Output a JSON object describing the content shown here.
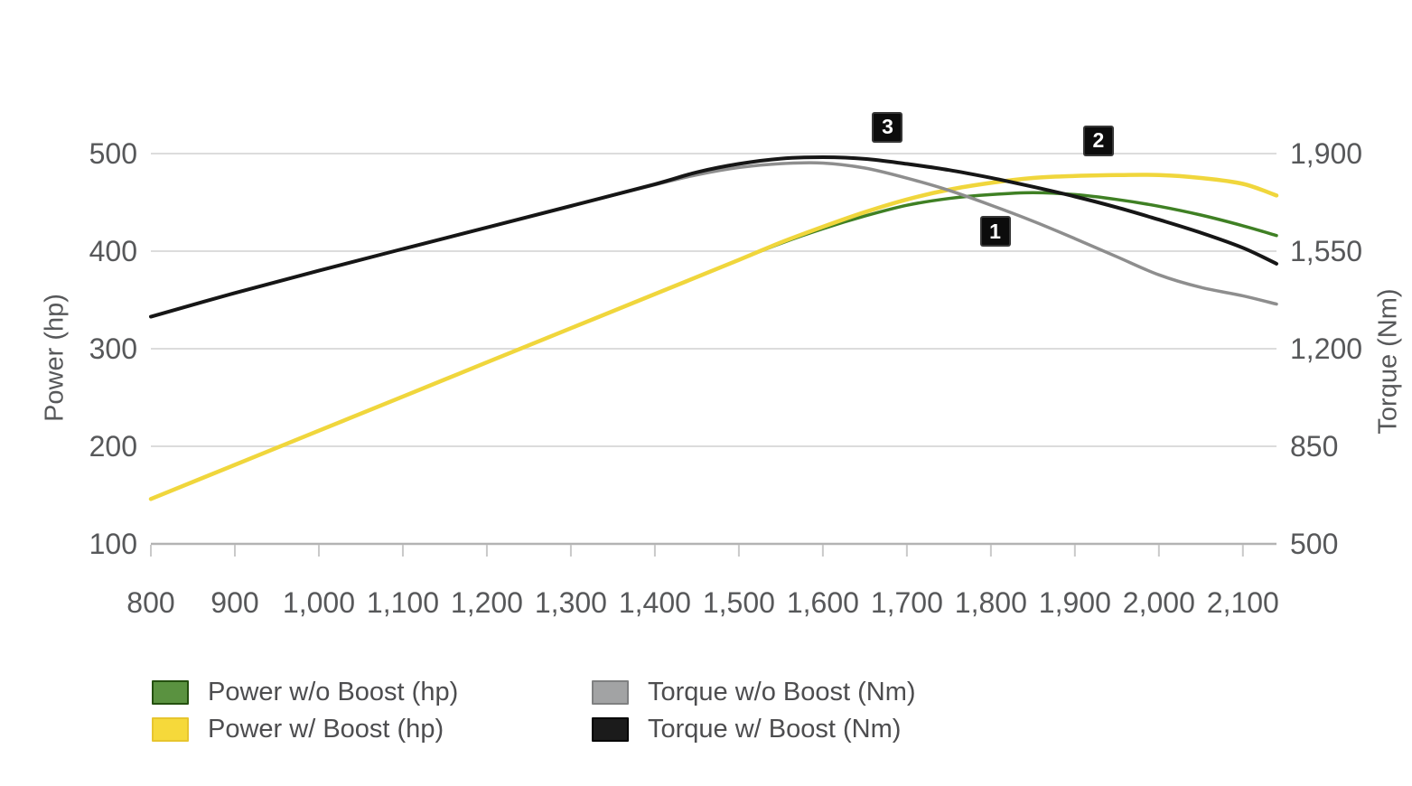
{
  "chart_data": {
    "type": "line",
    "title": "",
    "x_axis": {
      "label": "",
      "range": [
        800,
        2140
      ],
      "ticks": [
        {
          "value": 800,
          "label": "800"
        },
        {
          "value": 900,
          "label": "900"
        },
        {
          "value": 1000,
          "label": "1,000"
        },
        {
          "value": 1100,
          "label": "1,100"
        },
        {
          "value": 1200,
          "label": "1,200"
        },
        {
          "value": 1300,
          "label": "1,300"
        },
        {
          "value": 1400,
          "label": "1,400"
        },
        {
          "value": 1500,
          "label": "1,500"
        },
        {
          "value": 1600,
          "label": "1,600"
        },
        {
          "value": 1700,
          "label": "1,700"
        },
        {
          "value": 1800,
          "label": "1,800"
        },
        {
          "value": 1900,
          "label": "1,900"
        },
        {
          "value": 2000,
          "label": "2,000"
        },
        {
          "value": 2100,
          "label": "2,100"
        }
      ]
    },
    "y_left": {
      "label": "Power (hp)",
      "range": [
        100,
        500
      ],
      "ticks": [
        {
          "value": 500,
          "label": "500"
        },
        {
          "value": 400,
          "label": "400"
        },
        {
          "value": 300,
          "label": "300"
        },
        {
          "value": 200,
          "label": "200"
        },
        {
          "value": 100,
          "label": "100"
        }
      ]
    },
    "y_right": {
      "label": "Torque (Nm)",
      "range": [
        500,
        1900
      ],
      "ticks": [
        {
          "value": 1900,
          "label": "1,900"
        },
        {
          "value": 1550,
          "label": "1,550"
        },
        {
          "value": 1200,
          "label": "1,200"
        },
        {
          "value": 850,
          "label": "850"
        },
        {
          "value": 500,
          "label": "500"
        }
      ]
    },
    "grid": true,
    "legend_position": "bottom",
    "series": [
      {
        "name": "Power w/o Boost (hp)",
        "key": "power-without-boost",
        "axis": "left",
        "color": "#3f8024",
        "width": 3.5,
        "points": [
          [
            800,
            146
          ],
          [
            900,
            181
          ],
          [
            1000,
            216
          ],
          [
            1100,
            251
          ],
          [
            1200,
            286
          ],
          [
            1300,
            321
          ],
          [
            1400,
            356
          ],
          [
            1500,
            391
          ],
          [
            1550,
            408
          ],
          [
            1600,
            423
          ],
          [
            1650,
            436
          ],
          [
            1700,
            447
          ],
          [
            1750,
            454
          ],
          [
            1800,
            458
          ],
          [
            1850,
            460
          ],
          [
            1900,
            458
          ],
          [
            1950,
            453
          ],
          [
            2000,
            446
          ],
          [
            2050,
            437
          ],
          [
            2100,
            426
          ],
          [
            2140,
            416
          ]
        ]
      },
      {
        "name": "Power w/ Boost (hp)",
        "key": "power-with-boost",
        "axis": "left",
        "color": "#f0d63c",
        "width": 4.5,
        "points": [
          [
            800,
            146
          ],
          [
            900,
            181
          ],
          [
            1000,
            216
          ],
          [
            1100,
            251
          ],
          [
            1200,
            286
          ],
          [
            1300,
            321
          ],
          [
            1400,
            356
          ],
          [
            1500,
            391
          ],
          [
            1550,
            409
          ],
          [
            1600,
            425
          ],
          [
            1650,
            440
          ],
          [
            1700,
            453
          ],
          [
            1750,
            463
          ],
          [
            1800,
            470
          ],
          [
            1850,
            475
          ],
          [
            1900,
            477
          ],
          [
            1950,
            478
          ],
          [
            2000,
            478
          ],
          [
            2050,
            475
          ],
          [
            2100,
            469
          ],
          [
            2140,
            457
          ]
        ]
      },
      {
        "name": "Torque w/o Boost (Nm)",
        "key": "torque-without-boost",
        "axis": "right",
        "color": "#8e8e8e",
        "width": 3.5,
        "points": [
          [
            800,
            1315
          ],
          [
            900,
            1400
          ],
          [
            1000,
            1480
          ],
          [
            1100,
            1558
          ],
          [
            1200,
            1635
          ],
          [
            1300,
            1712
          ],
          [
            1400,
            1788
          ],
          [
            1450,
            1824
          ],
          [
            1500,
            1850
          ],
          [
            1550,
            1864
          ],
          [
            1600,
            1866
          ],
          [
            1650,
            1848
          ],
          [
            1700,
            1812
          ],
          [
            1750,
            1768
          ],
          [
            1800,
            1715
          ],
          [
            1850,
            1658
          ],
          [
            1900,
            1595
          ],
          [
            1950,
            1530
          ],
          [
            2000,
            1465
          ],
          [
            2050,
            1420
          ],
          [
            2100,
            1390
          ],
          [
            2140,
            1360
          ]
        ]
      },
      {
        "name": "Torque w/ Boost (Nm)",
        "key": "torque-with-boost",
        "axis": "right",
        "color": "#161616",
        "width": 4,
        "points": [
          [
            800,
            1315
          ],
          [
            900,
            1400
          ],
          [
            1000,
            1480
          ],
          [
            1100,
            1558
          ],
          [
            1200,
            1635
          ],
          [
            1300,
            1712
          ],
          [
            1400,
            1790
          ],
          [
            1450,
            1833
          ],
          [
            1500,
            1863
          ],
          [
            1550,
            1882
          ],
          [
            1600,
            1887
          ],
          [
            1650,
            1881
          ],
          [
            1700,
            1863
          ],
          [
            1750,
            1841
          ],
          [
            1800,
            1813
          ],
          [
            1850,
            1781
          ],
          [
            1900,
            1746
          ],
          [
            1950,
            1707
          ],
          [
            2000,
            1663
          ],
          [
            2050,
            1616
          ],
          [
            2100,
            1562
          ],
          [
            2140,
            1505
          ]
        ]
      }
    ],
    "annotations": [
      {
        "label": "1",
        "rpm": 1805,
        "value_hp": 420
      },
      {
        "label": "2",
        "rpm": 1928,
        "value_hp": 513
      },
      {
        "label": "3",
        "rpm": 1677,
        "value_hp": 527
      }
    ]
  },
  "legend": {
    "items": [
      {
        "label": "Power w/o Boost (hp)",
        "swatch_fill": "#5a9240",
        "swatch_border": "#24500f"
      },
      {
        "label": "Power w/ Boost (hp)",
        "swatch_fill": "#f6d93a",
        "swatch_border": "#e7c52e"
      },
      {
        "label": "Torque w/o Boost (Nm)",
        "swatch_fill": "#a2a3a4",
        "swatch_border": "#7f8081"
      },
      {
        "label": "Torque w/ Boost (Nm)",
        "swatch_fill": "#1b1b1b",
        "swatch_border": "#000000"
      }
    ]
  },
  "style": {
    "grid_color": "#dcdcdc",
    "axis_line_color": "#b3b3b3",
    "tick_mark_color": "#c9c9c9",
    "tick_label_color": "#57585a"
  }
}
